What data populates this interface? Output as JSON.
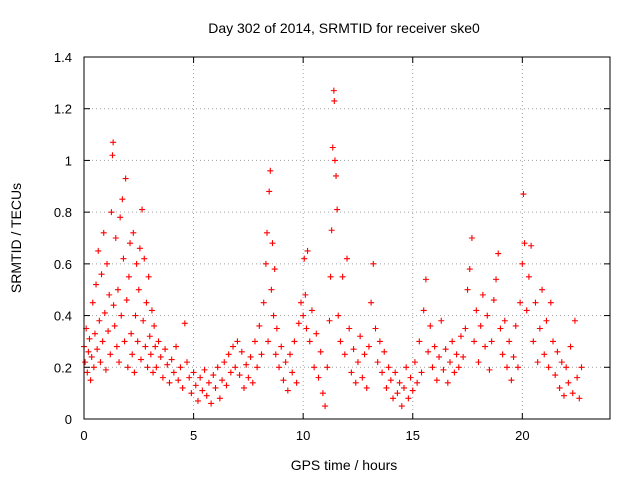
{
  "chart_data": {
    "type": "scatter",
    "title": "Day 302 of 2014, SRMTID for receiver ske0",
    "xlabel": "GPS time / hours",
    "ylabel": "SRMTID / TECUs",
    "xlim": [
      0,
      24
    ],
    "ylim": [
      0,
      1.4
    ],
    "xticks": [
      0,
      5,
      10,
      15,
      20
    ],
    "xtick_labels": [
      "0",
      "5",
      "10",
      "15",
      "20"
    ],
    "yticks": [
      0,
      0.2,
      0.4,
      0.6,
      0.8,
      1.0,
      1.2,
      1.4
    ],
    "ytick_labels": [
      "0",
      "0.2",
      "0.4",
      "0.6",
      "0.8",
      "1",
      "1.2",
      "1.4"
    ],
    "grid": true,
    "marker": "plus",
    "color": "#ff0000",
    "series": [
      {
        "name": "SRMTID",
        "points": [
          [
            0.0,
            0.28
          ],
          [
            0.05,
            0.22
          ],
          [
            0.1,
            0.35
          ],
          [
            0.15,
            0.18
          ],
          [
            0.2,
            0.26
          ],
          [
            0.25,
            0.31
          ],
          [
            0.3,
            0.15
          ],
          [
            0.35,
            0.24
          ],
          [
            0.4,
            0.45
          ],
          [
            0.45,
            0.2
          ],
          [
            0.5,
            0.33
          ],
          [
            0.55,
            0.52
          ],
          [
            0.6,
            0.27
          ],
          [
            0.65,
            0.65
          ],
          [
            0.7,
            0.38
          ],
          [
            0.75,
            0.22
          ],
          [
            0.8,
            0.56
          ],
          [
            0.85,
            0.3
          ],
          [
            0.9,
            0.72
          ],
          [
            0.95,
            0.41
          ],
          [
            1.0,
            0.19
          ],
          [
            1.05,
            0.6
          ],
          [
            1.1,
            0.34
          ],
          [
            1.15,
            0.48
          ],
          [
            1.2,
            0.25
          ],
          [
            1.25,
            0.8
          ],
          [
            1.3,
            1.02
          ],
          [
            1.33,
            1.07
          ],
          [
            1.35,
            0.44
          ],
          [
            1.4,
            0.36
          ],
          [
            1.45,
            0.7
          ],
          [
            1.5,
            0.28
          ],
          [
            1.55,
            0.5
          ],
          [
            1.6,
            0.22
          ],
          [
            1.65,
            0.78
          ],
          [
            1.7,
            0.4
          ],
          [
            1.75,
            0.85
          ],
          [
            1.8,
            0.62
          ],
          [
            1.85,
            0.3
          ],
          [
            1.9,
            0.93
          ],
          [
            1.95,
            0.46
          ],
          [
            2.0,
            0.2
          ],
          [
            2.05,
            0.55
          ],
          [
            2.1,
            0.68
          ],
          [
            2.15,
            0.33
          ],
          [
            2.2,
            0.25
          ],
          [
            2.25,
            0.72
          ],
          [
            2.3,
            0.18
          ],
          [
            2.35,
            0.4
          ],
          [
            2.4,
            0.6
          ],
          [
            2.45,
            0.3
          ],
          [
            2.5,
            0.5
          ],
          [
            2.55,
            0.66
          ],
          [
            2.6,
            0.23
          ],
          [
            2.65,
            0.81
          ],
          [
            2.7,
            0.38
          ],
          [
            2.75,
            0.62
          ],
          [
            2.8,
            0.28
          ],
          [
            2.85,
            0.45
          ],
          [
            2.9,
            0.2
          ],
          [
            2.95,
            0.55
          ],
          [
            3.0,
            0.32
          ],
          [
            3.05,
            0.25
          ],
          [
            3.1,
            0.42
          ],
          [
            3.15,
            0.18
          ],
          [
            3.2,
            0.36
          ],
          [
            3.25,
            0.28
          ],
          [
            3.3,
            0.2
          ],
          [
            3.4,
            0.3
          ],
          [
            3.5,
            0.24
          ],
          [
            3.6,
            0.16
          ],
          [
            3.7,
            0.27
          ],
          [
            3.8,
            0.21
          ],
          [
            3.9,
            0.14
          ],
          [
            4.0,
            0.23
          ],
          [
            4.1,
            0.18
          ],
          [
            4.2,
            0.28
          ],
          [
            4.3,
            0.15
          ],
          [
            4.4,
            0.2
          ],
          [
            4.5,
            0.12
          ],
          [
            4.6,
            0.37
          ],
          [
            4.7,
            0.22
          ],
          [
            4.8,
            0.16
          ],
          [
            4.9,
            0.1
          ],
          [
            5.0,
            0.18
          ],
          [
            5.1,
            0.13
          ],
          [
            5.2,
            0.07
          ],
          [
            5.3,
            0.16
          ],
          [
            5.4,
            0.11
          ],
          [
            5.5,
            0.19
          ],
          [
            5.6,
            0.09
          ],
          [
            5.7,
            0.14
          ],
          [
            5.8,
            0.06
          ],
          [
            5.9,
            0.17
          ],
          [
            6.0,
            0.12
          ],
          [
            6.1,
            0.2
          ],
          [
            6.2,
            0.08
          ],
          [
            6.3,
            0.15
          ],
          [
            6.4,
            0.22
          ],
          [
            6.5,
            0.13
          ],
          [
            6.6,
            0.25
          ],
          [
            6.7,
            0.18
          ],
          [
            6.8,
            0.28
          ],
          [
            6.9,
            0.2
          ],
          [
            7.0,
            0.3
          ],
          [
            7.1,
            0.17
          ],
          [
            7.2,
            0.26
          ],
          [
            7.3,
            0.12
          ],
          [
            7.4,
            0.21
          ],
          [
            7.5,
            0.16
          ],
          [
            7.6,
            0.24
          ],
          [
            7.7,
            0.14
          ],
          [
            7.8,
            0.3
          ],
          [
            7.9,
            0.2
          ],
          [
            8.0,
            0.36
          ],
          [
            8.1,
            0.25
          ],
          [
            8.2,
            0.45
          ],
          [
            8.3,
            0.6
          ],
          [
            8.35,
            0.72
          ],
          [
            8.4,
            0.3
          ],
          [
            8.45,
            0.88
          ],
          [
            8.5,
            0.96
          ],
          [
            8.55,
            0.5
          ],
          [
            8.6,
            0.68
          ],
          [
            8.65,
            0.4
          ],
          [
            8.7,
            0.58
          ],
          [
            8.75,
            0.25
          ],
          [
            8.8,
            0.35
          ],
          [
            8.9,
            0.2
          ],
          [
            9.0,
            0.28
          ],
          [
            9.1,
            0.15
          ],
          [
            9.2,
            0.22
          ],
          [
            9.3,
            0.11
          ],
          [
            9.4,
            0.25
          ],
          [
            9.5,
            0.18
          ],
          [
            9.6,
            0.3
          ],
          [
            9.7,
            0.14
          ],
          [
            9.8,
            0.37
          ],
          [
            9.9,
            0.45
          ],
          [
            10.0,
            0.4
          ],
          [
            10.05,
            0.62
          ],
          [
            10.1,
            0.48
          ],
          [
            10.15,
            0.35
          ],
          [
            10.2,
            0.65
          ],
          [
            10.3,
            0.3
          ],
          [
            10.4,
            0.42
          ],
          [
            10.5,
            0.2
          ],
          [
            10.6,
            0.33
          ],
          [
            10.7,
            0.16
          ],
          [
            10.8,
            0.26
          ],
          [
            10.9,
            0.1
          ],
          [
            11.0,
            0.05
          ],
          [
            11.1,
            0.2
          ],
          [
            11.2,
            0.38
          ],
          [
            11.25,
            0.55
          ],
          [
            11.3,
            0.73
          ],
          [
            11.35,
            1.05
          ],
          [
            11.4,
            1.27
          ],
          [
            11.42,
            1.23
          ],
          [
            11.45,
            1.0
          ],
          [
            11.5,
            0.94
          ],
          [
            11.55,
            0.81
          ],
          [
            11.6,
            0.4
          ],
          [
            11.7,
            0.3
          ],
          [
            11.8,
            0.55
          ],
          [
            11.9,
            0.25
          ],
          [
            12.0,
            0.62
          ],
          [
            12.1,
            0.35
          ],
          [
            12.2,
            0.18
          ],
          [
            12.3,
            0.27
          ],
          [
            12.4,
            0.14
          ],
          [
            12.5,
            0.22
          ],
          [
            12.6,
            0.32
          ],
          [
            12.7,
            0.16
          ],
          [
            12.8,
            0.25
          ],
          [
            12.9,
            0.12
          ],
          [
            13.0,
            0.28
          ],
          [
            13.1,
            0.45
          ],
          [
            13.2,
            0.6
          ],
          [
            13.3,
            0.35
          ],
          [
            13.4,
            0.22
          ],
          [
            13.5,
            0.3
          ],
          [
            13.6,
            0.18
          ],
          [
            13.7,
            0.26
          ],
          [
            13.8,
            0.12
          ],
          [
            13.9,
            0.2
          ],
          [
            14.0,
            0.15
          ],
          [
            14.1,
            0.08
          ],
          [
            14.2,
            0.18
          ],
          [
            14.3,
            0.1
          ],
          [
            14.4,
            0.14
          ],
          [
            14.5,
            0.05
          ],
          [
            14.6,
            0.12
          ],
          [
            14.7,
            0.2
          ],
          [
            14.8,
            0.08
          ],
          [
            14.9,
            0.16
          ],
          [
            15.0,
            0.11
          ],
          [
            15.1,
            0.22
          ],
          [
            15.2,
            0.14
          ],
          [
            15.3,
            0.3
          ],
          [
            15.4,
            0.18
          ],
          [
            15.5,
            0.42
          ],
          [
            15.6,
            0.54
          ],
          [
            15.7,
            0.26
          ],
          [
            15.8,
            0.36
          ],
          [
            15.9,
            0.2
          ],
          [
            16.0,
            0.28
          ],
          [
            16.1,
            0.15
          ],
          [
            16.2,
            0.24
          ],
          [
            16.3,
            0.38
          ],
          [
            16.4,
            0.19
          ],
          [
            16.5,
            0.27
          ],
          [
            16.6,
            0.14
          ],
          [
            16.7,
            0.22
          ],
          [
            16.8,
            0.3
          ],
          [
            16.9,
            0.18
          ],
          [
            17.0,
            0.25
          ],
          [
            17.1,
            0.2
          ],
          [
            17.2,
            0.32
          ],
          [
            17.3,
            0.24
          ],
          [
            17.4,
            0.35
          ],
          [
            17.5,
            0.5
          ],
          [
            17.6,
            0.58
          ],
          [
            17.7,
            0.7
          ],
          [
            17.8,
            0.3
          ],
          [
            17.9,
            0.42
          ],
          [
            18.0,
            0.22
          ],
          [
            18.1,
            0.36
          ],
          [
            18.2,
            0.48
          ],
          [
            18.3,
            0.28
          ],
          [
            18.4,
            0.4
          ],
          [
            18.5,
            0.19
          ],
          [
            18.6,
            0.3
          ],
          [
            18.7,
            0.46
          ],
          [
            18.8,
            0.54
          ],
          [
            18.9,
            0.64
          ],
          [
            19.0,
            0.35
          ],
          [
            19.1,
            0.25
          ],
          [
            19.2,
            0.38
          ],
          [
            19.3,
            0.2
          ],
          [
            19.4,
            0.3
          ],
          [
            19.5,
            0.15
          ],
          [
            19.6,
            0.24
          ],
          [
            19.7,
            0.36
          ],
          [
            19.8,
            0.2
          ],
          [
            19.9,
            0.45
          ],
          [
            20.0,
            0.6
          ],
          [
            20.05,
            0.87
          ],
          [
            20.1,
            0.68
          ],
          [
            20.2,
            0.42
          ],
          [
            20.3,
            0.55
          ],
          [
            20.4,
            0.67
          ],
          [
            20.5,
            0.3
          ],
          [
            20.6,
            0.45
          ],
          [
            20.7,
            0.22
          ],
          [
            20.8,
            0.35
          ],
          [
            20.9,
            0.5
          ],
          [
            21.0,
            0.25
          ],
          [
            21.1,
            0.38
          ],
          [
            21.2,
            0.2
          ],
          [
            21.3,
            0.45
          ],
          [
            21.4,
            0.3
          ],
          [
            21.5,
            0.17
          ],
          [
            21.6,
            0.26
          ],
          [
            21.7,
            0.12
          ],
          [
            21.8,
            0.22
          ],
          [
            21.9,
            0.09
          ],
          [
            22.0,
            0.2
          ],
          [
            22.1,
            0.14
          ],
          [
            22.2,
            0.28
          ],
          [
            22.3,
            0.1
          ],
          [
            22.4,
            0.38
          ],
          [
            22.5,
            0.16
          ],
          [
            22.6,
            0.08
          ],
          [
            22.7,
            0.2
          ]
        ]
      }
    ]
  }
}
